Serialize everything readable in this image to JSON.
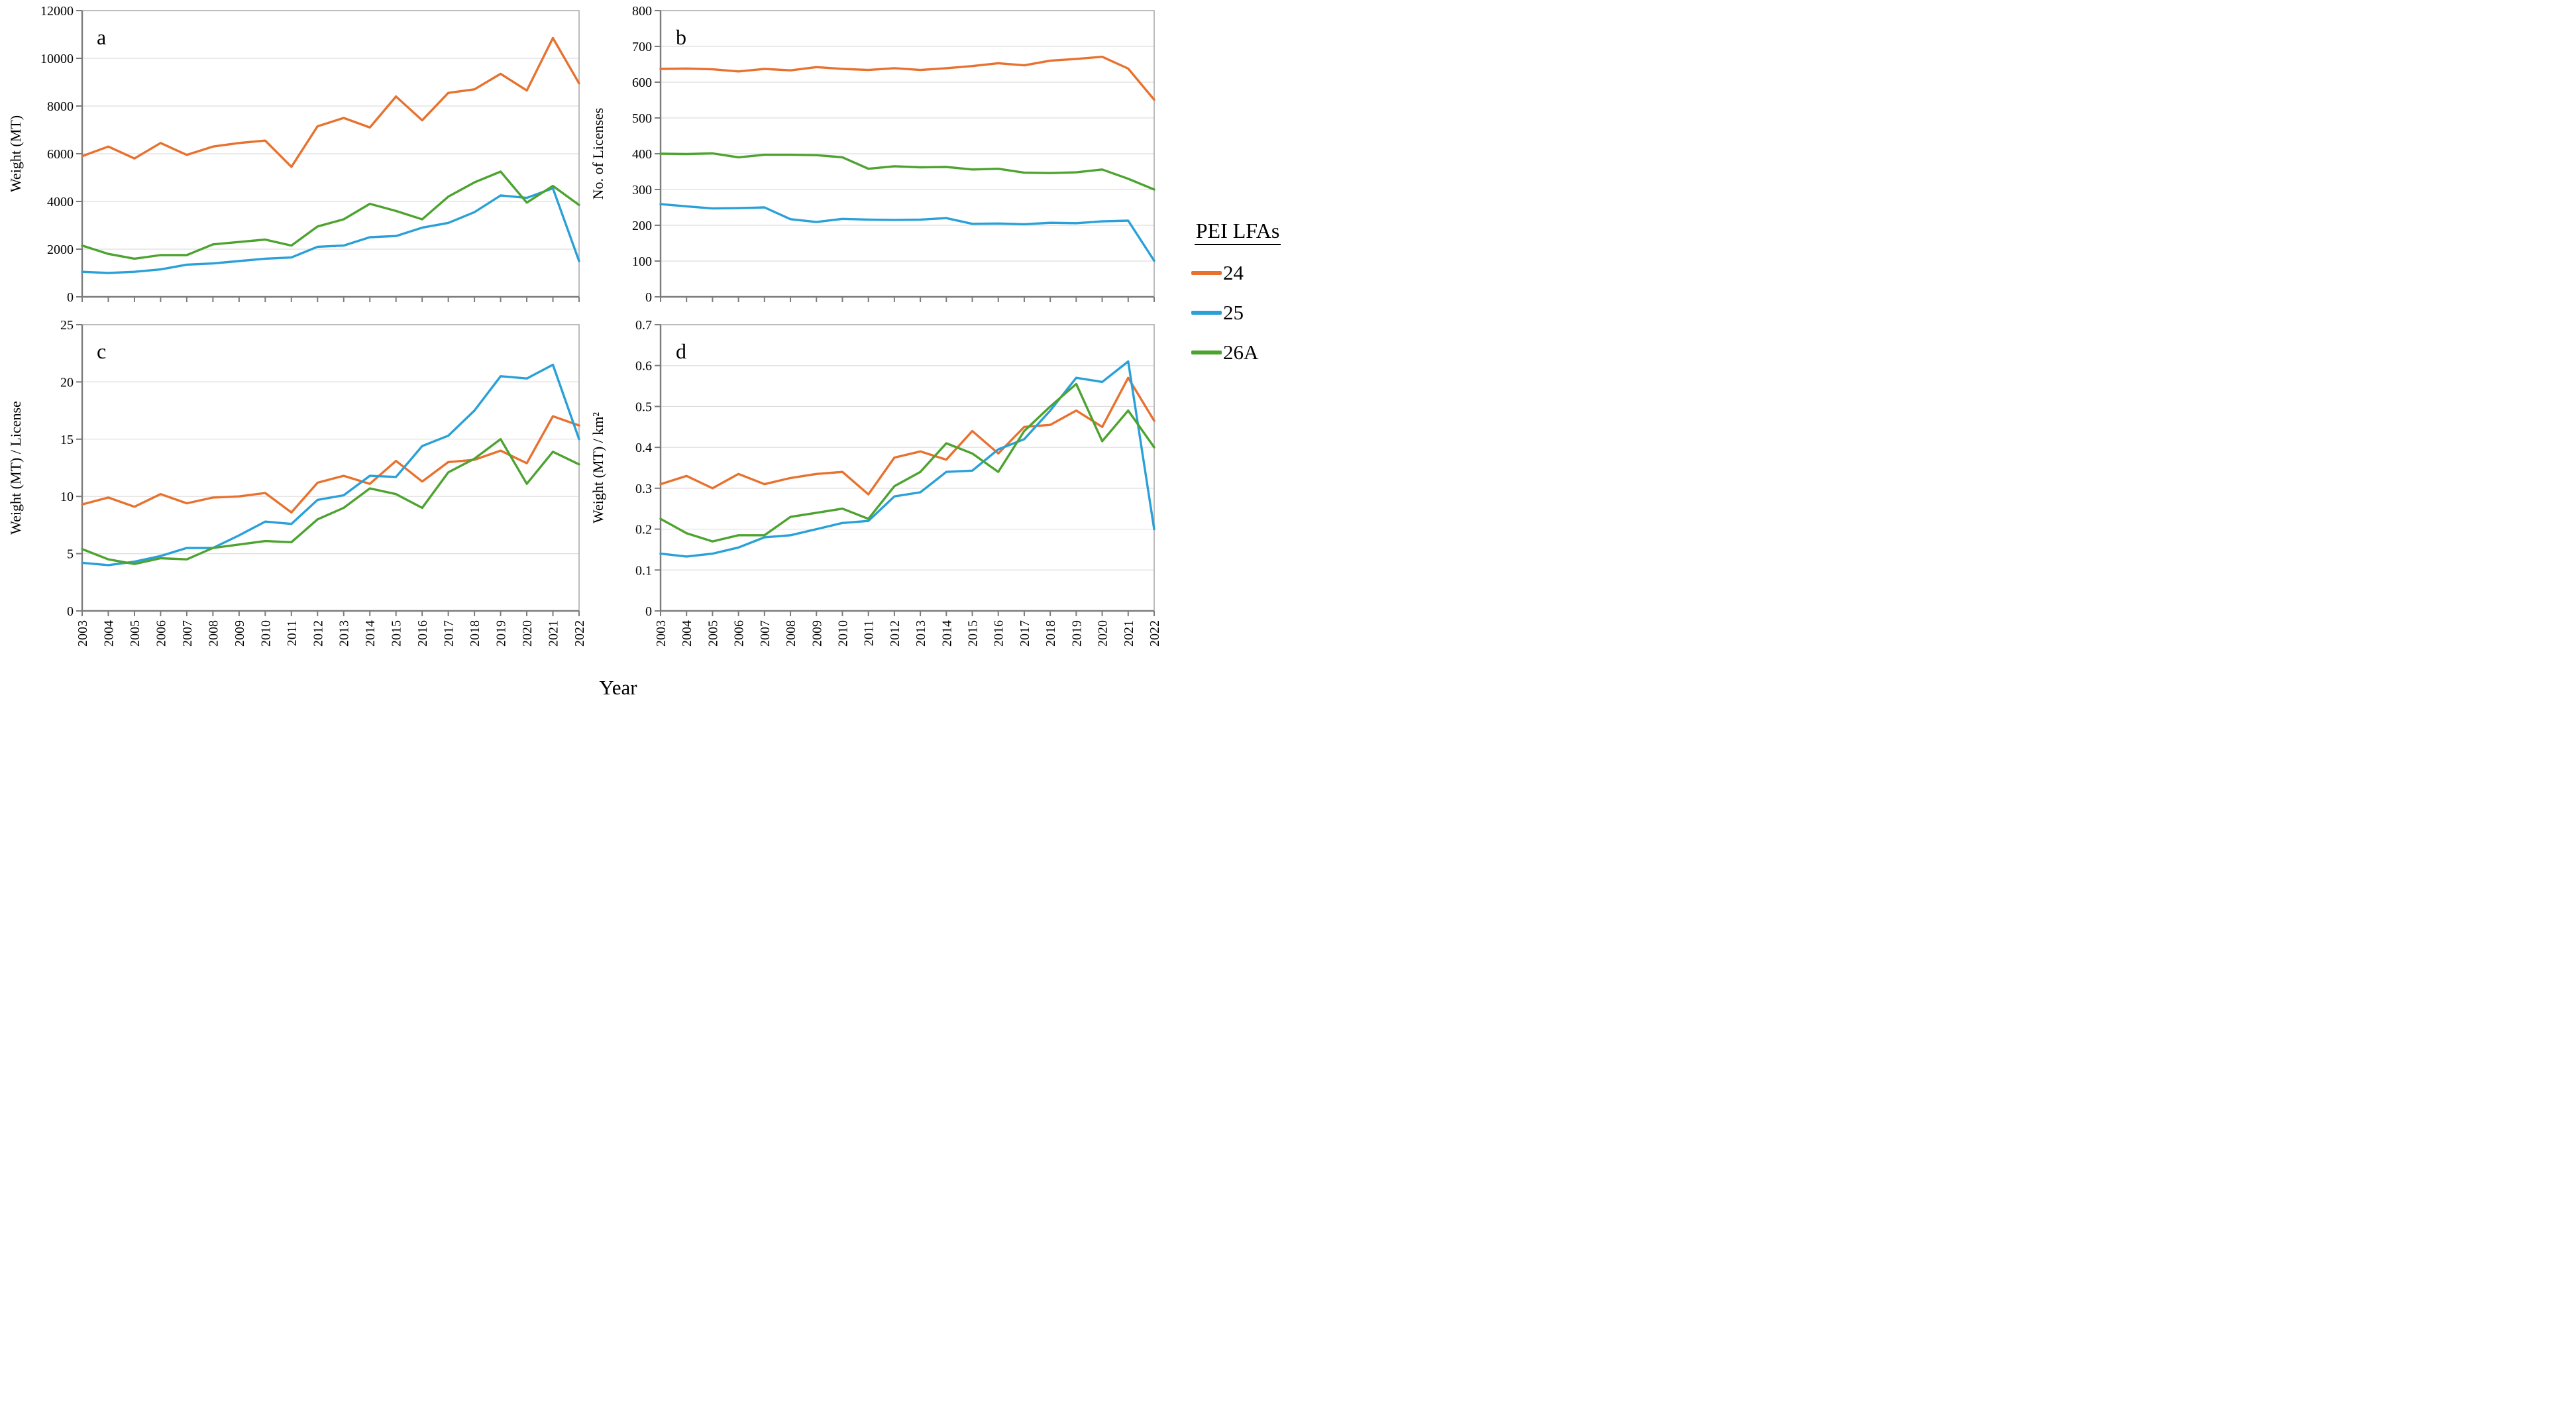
{
  "figure": {
    "xlabel": "Year",
    "legend": {
      "title": "PEI LFAs",
      "entries": [
        {
          "label": "24",
          "color": "#E8712E"
        },
        {
          "label": "25",
          "color": "#29A0D8"
        },
        {
          "label": "26A",
          "color": "#4DA32F"
        }
      ]
    }
  },
  "chart_data": [
    {
      "type": "line",
      "panel": "a",
      "ylabel": "Weight (MT)",
      "ylim": [
        0,
        12000
      ],
      "ystep": 2000,
      "show_x_labels": false,
      "x": [
        2003,
        2004,
        2005,
        2006,
        2007,
        2008,
        2009,
        2010,
        2011,
        2012,
        2013,
        2014,
        2015,
        2016,
        2017,
        2018,
        2019,
        2020,
        2021,
        2022
      ],
      "series": [
        {
          "name": "24",
          "values": [
            5900,
            6300,
            5800,
            6450,
            5950,
            6300,
            6450,
            6550,
            5450,
            7150,
            7500,
            7100,
            8400,
            7400,
            8550,
            8700,
            9350,
            8650,
            10850,
            8950
          ]
        },
        {
          "name": "25",
          "values": [
            1050,
            1000,
            1050,
            1150,
            1350,
            1400,
            1500,
            1600,
            1650,
            2100,
            2150,
            2500,
            2550,
            2900,
            3100,
            3550,
            4250,
            4150,
            4550,
            1500
          ]
        },
        {
          "name": "26A",
          "values": [
            2150,
            1800,
            1600,
            1750,
            1750,
            2200,
            2300,
            2400,
            2150,
            2950,
            3250,
            3900,
            3600,
            3250,
            4200,
            4800,
            5250,
            3950,
            4650,
            3850
          ]
        }
      ]
    },
    {
      "type": "line",
      "panel": "b",
      "ylabel": "No. of Licenses",
      "ylim": [
        0,
        800
      ],
      "ystep": 100,
      "show_x_labels": false,
      "x": [
        2003,
        2004,
        2005,
        2006,
        2007,
        2008,
        2009,
        2010,
        2011,
        2012,
        2013,
        2014,
        2015,
        2016,
        2017,
        2018,
        2019,
        2020,
        2021,
        2022
      ],
      "series": [
        {
          "name": "24",
          "values": [
            637,
            638,
            636,
            630,
            637,
            633,
            642,
            637,
            634,
            639,
            634,
            639,
            645,
            653,
            647,
            660,
            665,
            671,
            638,
            551
          ]
        },
        {
          "name": "25",
          "values": [
            259,
            253,
            247,
            248,
            250,
            217,
            209,
            218,
            216,
            215,
            216,
            220,
            204,
            205,
            203,
            207,
            206,
            211,
            213,
            101
          ]
        },
        {
          "name": "26A",
          "values": [
            400,
            399,
            401,
            390,
            397,
            397,
            396,
            390,
            358,
            365,
            362,
            363,
            356,
            358,
            347,
            346,
            348,
            356,
            330,
            300
          ]
        }
      ]
    },
    {
      "type": "line",
      "panel": "c",
      "ylabel": "Weight (MT) / License",
      "ylim": [
        0,
        25
      ],
      "ystep": 5,
      "show_x_labels": true,
      "x": [
        2003,
        2004,
        2005,
        2006,
        2007,
        2008,
        2009,
        2010,
        2011,
        2012,
        2013,
        2014,
        2015,
        2016,
        2017,
        2018,
        2019,
        2020,
        2021,
        2022
      ],
      "series": [
        {
          "name": "24",
          "values": [
            9.3,
            9.9,
            9.1,
            10.2,
            9.4,
            9.9,
            10.0,
            10.3,
            8.6,
            11.2,
            11.8,
            11.1,
            13.1,
            11.3,
            13.0,
            13.2,
            14.0,
            12.9,
            17.0,
            16.2
          ]
        },
        {
          "name": "25",
          "values": [
            4.2,
            4.0,
            4.3,
            4.8,
            5.5,
            5.5,
            6.6,
            7.8,
            7.6,
            9.7,
            10.1,
            11.8,
            11.7,
            14.4,
            15.3,
            17.5,
            20.5,
            20.3,
            21.5,
            15.0
          ]
        },
        {
          "name": "26A",
          "values": [
            5.4,
            4.5,
            4.1,
            4.6,
            4.5,
            5.5,
            5.8,
            6.1,
            6.0,
            8.0,
            9.0,
            10.7,
            10.2,
            9.0,
            12.1,
            13.3,
            15.0,
            11.1,
            13.9,
            12.8
          ]
        }
      ]
    },
    {
      "type": "line",
      "panel": "d",
      "ylabel": "Weight (MT) / km²",
      "ylim": [
        0,
        0.7
      ],
      "ystep": 0.1,
      "show_x_labels": true,
      "x": [
        2003,
        2004,
        2005,
        2006,
        2007,
        2008,
        2009,
        2010,
        2011,
        2012,
        2013,
        2014,
        2015,
        2016,
        2017,
        2018,
        2019,
        2020,
        2021,
        2022
      ],
      "series": [
        {
          "name": "24",
          "values": [
            0.31,
            0.33,
            0.3,
            0.335,
            0.31,
            0.325,
            0.335,
            0.34,
            0.285,
            0.375,
            0.39,
            0.37,
            0.44,
            0.385,
            0.45,
            0.455,
            0.49,
            0.45,
            0.57,
            0.465
          ]
        },
        {
          "name": "25",
          "values": [
            0.14,
            0.133,
            0.14,
            0.155,
            0.18,
            0.185,
            0.2,
            0.215,
            0.22,
            0.28,
            0.29,
            0.34,
            0.343,
            0.395,
            0.42,
            0.49,
            0.57,
            0.56,
            0.61,
            0.2
          ]
        },
        {
          "name": "26A",
          "values": [
            0.225,
            0.19,
            0.17,
            0.185,
            0.185,
            0.23,
            0.24,
            0.25,
            0.225,
            0.305,
            0.34,
            0.41,
            0.385,
            0.34,
            0.44,
            0.5,
            0.555,
            0.415,
            0.49,
            0.4
          ]
        }
      ]
    }
  ]
}
